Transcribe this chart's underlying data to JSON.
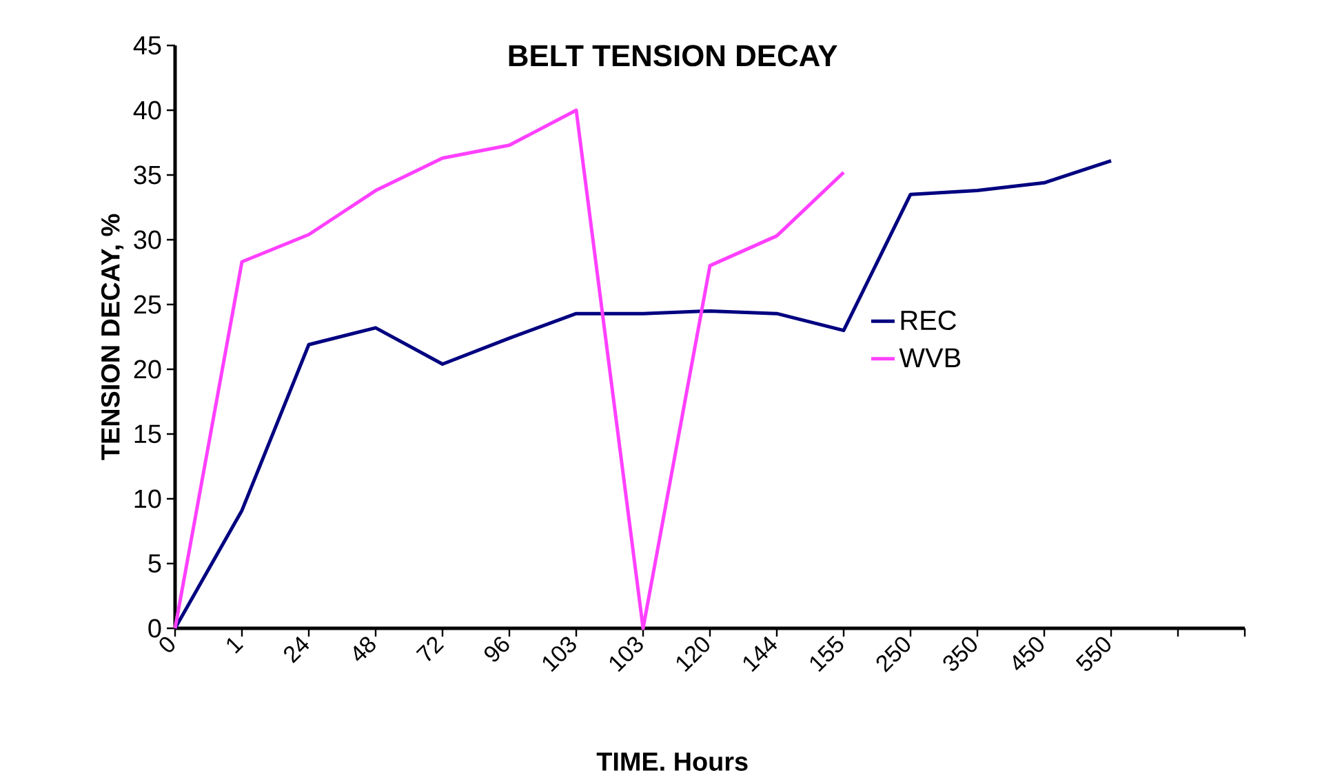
{
  "chart_data": {
    "type": "line",
    "title": "BELT TENSION DECAY",
    "xlabel": "TIME. Hours",
    "ylabel": "TENSION DECAY, %",
    "categories": [
      "0",
      "1",
      "24",
      "48",
      "72",
      "96",
      "103",
      "103",
      "120",
      "144",
      "155",
      "250",
      "350",
      "450",
      "550",
      null,
      null
    ],
    "series": [
      {
        "name": "REC",
        "color": "#000080",
        "values": [
          0,
          9.1,
          21.9,
          23.2,
          20.4,
          22.4,
          24.3,
          24.3,
          24.5,
          24.3,
          23.0,
          33.5,
          33.8,
          34.4,
          36.1,
          null,
          null
        ]
      },
      {
        "name": "WVB",
        "color": "#ff40ff",
        "values": [
          0,
          28.3,
          30.4,
          33.8,
          36.3,
          37.3,
          40.0,
          0,
          28.0,
          30.3,
          35.2,
          null,
          null,
          null,
          null,
          null,
          null
        ]
      }
    ],
    "ylim": [
      0,
      45
    ],
    "yticks": [
      0,
      5,
      10,
      15,
      20,
      25,
      30,
      35,
      40,
      45
    ],
    "grid": false,
    "legend": "right",
    "marker": "none",
    "line_style": "solid"
  }
}
